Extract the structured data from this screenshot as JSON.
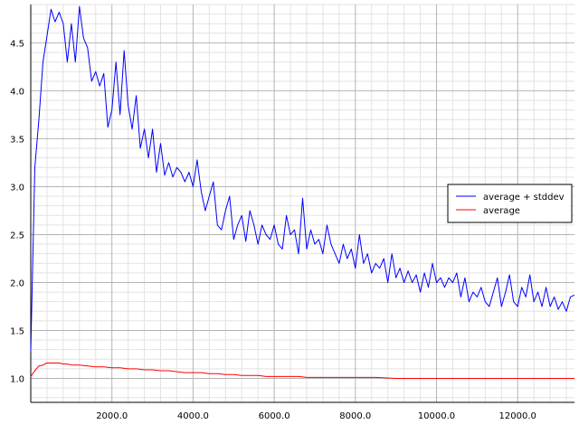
{
  "chart_data": {
    "type": "line",
    "title": "",
    "xlabel": "",
    "ylabel": "",
    "xlim": [
      0,
      13400
    ],
    "ylim": [
      0.75,
      4.9
    ],
    "grid": true,
    "legend": "right",
    "x_ticks": [
      2000,
      4000,
      6000,
      8000,
      10000,
      12000
    ],
    "x_tick_labels": [
      "2000.0",
      "4000.0",
      "6000.0",
      "8000.0",
      "10000.0",
      "12000.0"
    ],
    "y_ticks": [
      1.0,
      1.5,
      2.0,
      2.5,
      3.0,
      3.5,
      4.0,
      4.5
    ],
    "y_tick_labels": [
      "1.0",
      "1.5",
      "2.0",
      "2.5",
      "3.0",
      "3.5",
      "4.0",
      "4.5"
    ],
    "series": [
      {
        "name": "average + stddev",
        "color": "#0000ff",
        "x": [
          0,
          100,
          200,
          300,
          400,
          500,
          600,
          700,
          800,
          900,
          1000,
          1100,
          1200,
          1300,
          1400,
          1500,
          1600,
          1700,
          1800,
          1900,
          2000,
          2100,
          2200,
          2300,
          2400,
          2500,
          2600,
          2700,
          2800,
          2900,
          3000,
          3100,
          3200,
          3300,
          3400,
          3500,
          3600,
          3700,
          3800,
          3900,
          4000,
          4100,
          4200,
          4300,
          4400,
          4500,
          4600,
          4700,
          4800,
          4900,
          5000,
          5100,
          5200,
          5300,
          5400,
          5500,
          5600,
          5700,
          5800,
          5900,
          6000,
          6100,
          6200,
          6300,
          6400,
          6500,
          6600,
          6700,
          6800,
          6900,
          7000,
          7100,
          7200,
          7300,
          7400,
          7500,
          7600,
          7700,
          7800,
          7900,
          8000,
          8100,
          8200,
          8300,
          8400,
          8500,
          8600,
          8700,
          8800,
          8900,
          9000,
          9100,
          9200,
          9300,
          9400,
          9500,
          9600,
          9700,
          9800,
          9900,
          10000,
          10100,
          10200,
          10300,
          10400,
          10500,
          10600,
          10700,
          10800,
          10900,
          11000,
          11100,
          11200,
          11300,
          11400,
          11500,
          11600,
          11700,
          11800,
          11900,
          12000,
          12100,
          12200,
          12300,
          12400,
          12500,
          12600,
          12700,
          12800,
          12900,
          13000,
          13100,
          13200,
          13300,
          13400
        ],
        "values": [
          1.28,
          3.2,
          3.7,
          4.3,
          4.57,
          4.85,
          4.72,
          4.82,
          4.7,
          4.3,
          4.7,
          4.3,
          4.88,
          4.55,
          4.45,
          4.1,
          4.2,
          4.05,
          4.18,
          3.62,
          3.8,
          4.3,
          3.75,
          4.42,
          3.85,
          3.6,
          3.95,
          3.4,
          3.6,
          3.3,
          3.6,
          3.15,
          3.45,
          3.12,
          3.25,
          3.1,
          3.2,
          3.15,
          3.05,
          3.15,
          3.0,
          3.28,
          2.95,
          2.75,
          2.9,
          3.05,
          2.6,
          2.55,
          2.75,
          2.9,
          2.45,
          2.6,
          2.7,
          2.43,
          2.75,
          2.6,
          2.4,
          2.6,
          2.5,
          2.45,
          2.6,
          2.4,
          2.35,
          2.7,
          2.5,
          2.55,
          2.3,
          2.88,
          2.35,
          2.55,
          2.4,
          2.45,
          2.3,
          2.6,
          2.4,
          2.3,
          2.2,
          2.4,
          2.25,
          2.35,
          2.15,
          2.5,
          2.2,
          2.3,
          2.1,
          2.2,
          2.15,
          2.25,
          2.0,
          2.3,
          2.05,
          2.15,
          2.0,
          2.12,
          2.0,
          2.08,
          1.9,
          2.1,
          1.95,
          2.2,
          2.0,
          2.05,
          1.95,
          2.05,
          2.0,
          2.1,
          1.85,
          2.05,
          1.8,
          1.9,
          1.85,
          1.95,
          1.8,
          1.75,
          1.9,
          2.05,
          1.75,
          1.9,
          2.08,
          1.8,
          1.75,
          1.95,
          1.85,
          2.08,
          1.8,
          1.9,
          1.75,
          1.95,
          1.75,
          1.85,
          1.72,
          1.8,
          1.7,
          1.85,
          1.87
        ]
      },
      {
        "name": "average",
        "color": "#ff0000",
        "x": [
          0,
          100,
          200,
          300,
          400,
          500,
          600,
          700,
          800,
          900,
          1000,
          1200,
          1400,
          1600,
          1800,
          2000,
          2200,
          2400,
          2600,
          2800,
          3000,
          3200,
          3400,
          3600,
          3800,
          4000,
          4200,
          4400,
          4600,
          4800,
          5000,
          5200,
          5400,
          5600,
          5800,
          6000,
          6200,
          6400,
          6600,
          6800,
          7000,
          7200,
          7400,
          7600,
          7800,
          8000,
          8500,
          9000,
          9500,
          10000,
          10500,
          11000,
          11500,
          12000,
          12500,
          13000,
          13400
        ],
        "values": [
          1.02,
          1.08,
          1.13,
          1.14,
          1.16,
          1.16,
          1.16,
          1.16,
          1.15,
          1.15,
          1.14,
          1.14,
          1.13,
          1.12,
          1.12,
          1.11,
          1.11,
          1.1,
          1.1,
          1.09,
          1.09,
          1.08,
          1.08,
          1.07,
          1.06,
          1.06,
          1.06,
          1.05,
          1.05,
          1.04,
          1.04,
          1.03,
          1.03,
          1.03,
          1.02,
          1.02,
          1.02,
          1.02,
          1.02,
          1.01,
          1.01,
          1.01,
          1.01,
          1.01,
          1.01,
          1.01,
          1.01,
          1.0,
          1.0,
          1.0,
          1.0,
          1.0,
          1.0,
          1.0,
          1.0,
          1.0,
          1.0
        ]
      }
    ]
  }
}
